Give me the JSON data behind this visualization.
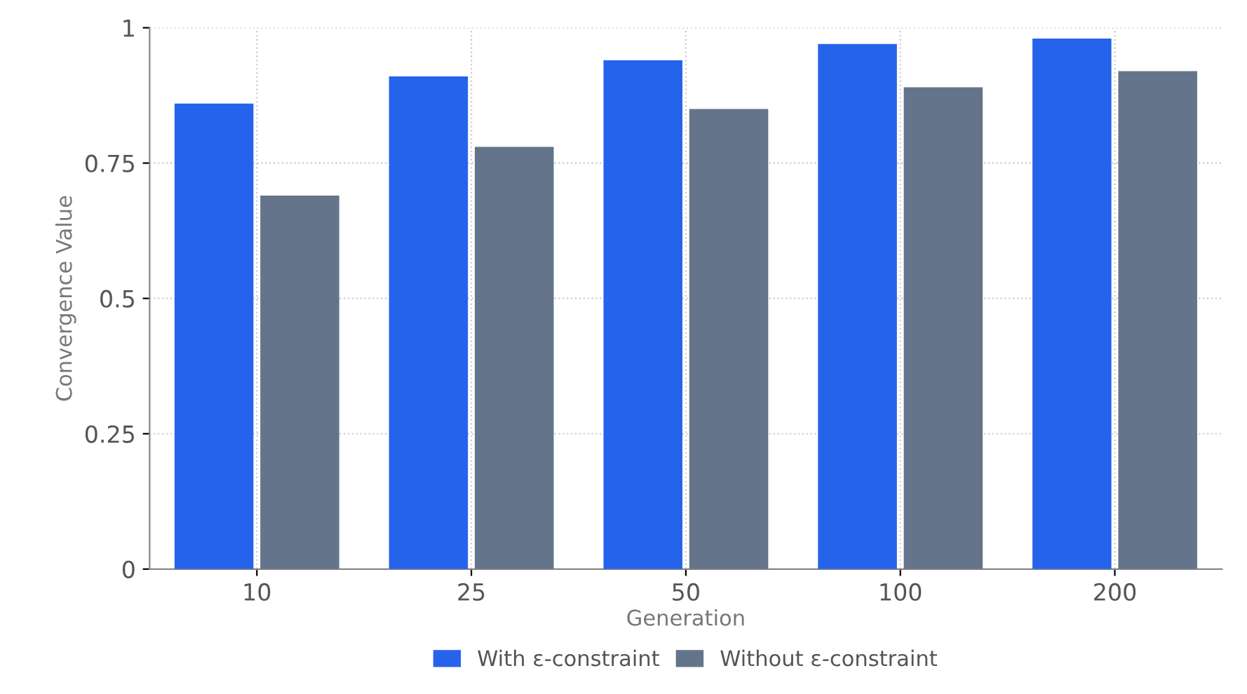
{
  "chart_data": {
    "type": "bar",
    "xlabel": "Generation",
    "ylabel": "Convergence Value",
    "categories": [
      "10",
      "25",
      "50",
      "100",
      "200"
    ],
    "series": [
      {
        "name": "With ε-constraint",
        "color": "#2563eb",
        "values": [
          0.86,
          0.91,
          0.94,
          0.97,
          0.98
        ]
      },
      {
        "name": "Without ε-constraint",
        "color": "#64748b",
        "values": [
          0.69,
          0.78,
          0.85,
          0.89,
          0.92
        ]
      }
    ],
    "ylim": [
      0,
      1
    ],
    "yticks": [
      0,
      0.25,
      0.5,
      0.75,
      1
    ],
    "grid": true,
    "legend": "bottom"
  }
}
